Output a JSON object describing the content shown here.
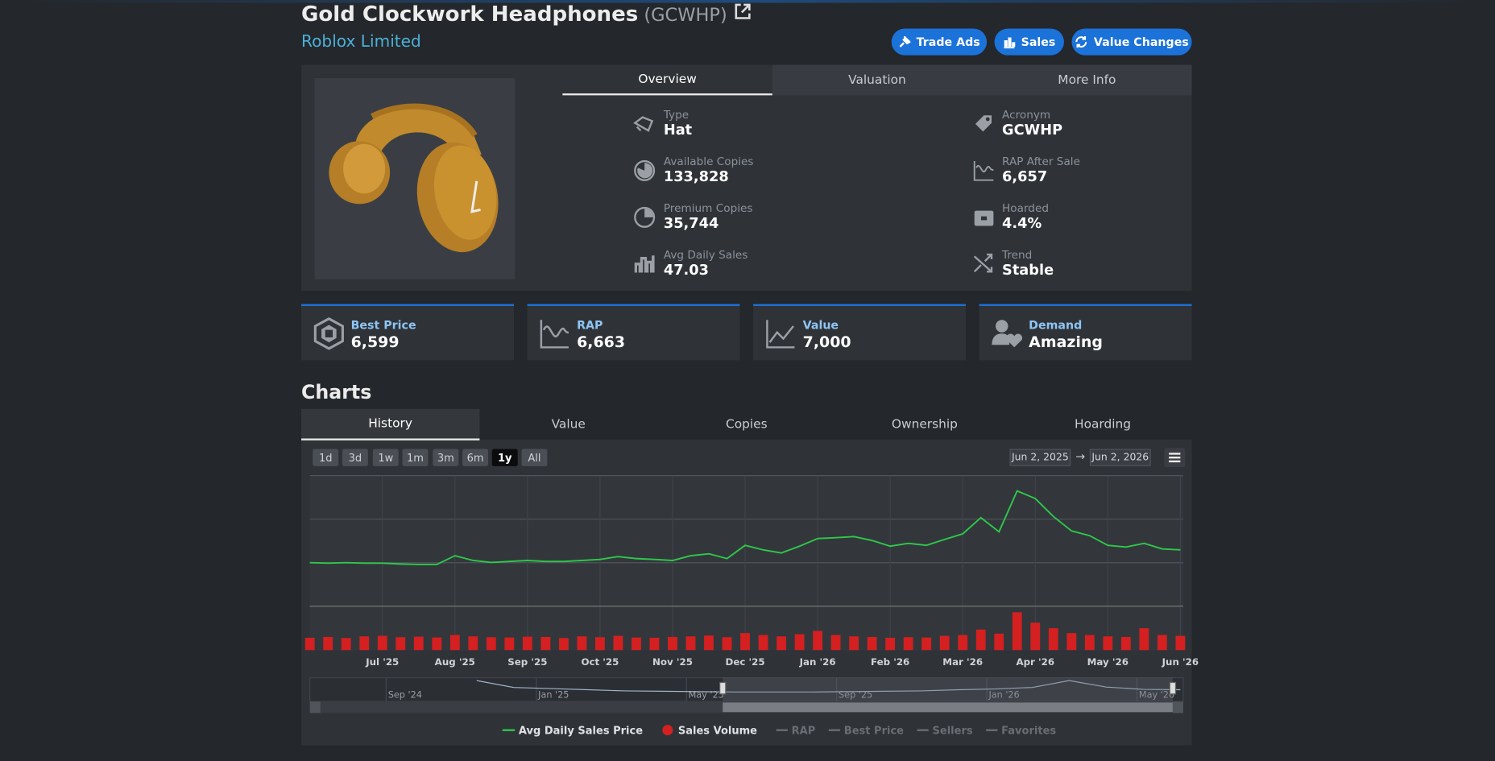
{
  "header": {
    "title": "Gold Clockwork Headphones",
    "acronym": "(GCWHP)",
    "subtitle": "Roblox Limited",
    "buttons": [
      "Trade Ads",
      "Sales",
      "Value Changes"
    ]
  },
  "tabs": [
    "Overview",
    "Valuation",
    "More Info"
  ],
  "active_tab": 0,
  "stats_left": [
    {
      "label": "Type",
      "value": "Hat"
    },
    {
      "label": "Available Copies",
      "value": "133,828"
    },
    {
      "label": "Premium Copies",
      "value": "35,744"
    },
    {
      "label": "Avg Daily Sales",
      "value": "47.03"
    }
  ],
  "stats_right": [
    {
      "label": "Acronym",
      "value": "GCWHP"
    },
    {
      "label": "RAP After Sale",
      "value": "6,657"
    },
    {
      "label": "Hoarded",
      "value": "4.4%"
    },
    {
      "label": "Trend",
      "value": "Stable"
    }
  ],
  "cards": [
    {
      "label": "Best Price",
      "value": "6,599"
    },
    {
      "label": "RAP",
      "value": "6,663"
    },
    {
      "label": "Value",
      "value": "7,000"
    },
    {
      "label": "Demand",
      "value": "Amazing"
    }
  ],
  "charts": {
    "title": "Charts",
    "tabs": [
      "History",
      "Value",
      "Copies",
      "Ownership",
      "Hoarding"
    ],
    "active_tab": 0,
    "ranges": [
      "1d",
      "3d",
      "1w",
      "1m",
      "3m",
      "6m",
      "1y",
      "All"
    ],
    "active_range": 6,
    "date_from": "Jun 2, 2025",
    "arrow": "→",
    "date_to": "Jun 2, 2026"
  },
  "chart_data": {
    "type": "combo",
    "categories": [
      null,
      null,
      null,
      null,
      "Jul '25",
      null,
      null,
      null,
      "Aug '25",
      null,
      null,
      null,
      "Sep '25",
      null,
      null,
      null,
      "Oct '25",
      null,
      null,
      null,
      "Nov '25",
      null,
      null,
      null,
      "Dec '25",
      null,
      null,
      null,
      "Jan '26",
      null,
      null,
      null,
      "Feb '26",
      null,
      null,
      null,
      "Mar '26",
      null,
      null,
      null,
      "Apr '26",
      null,
      null,
      null,
      "May '26",
      null,
      null,
      null,
      "Jun '26"
    ],
    "series": [
      {
        "name": "Avg Daily Sales Price",
        "type": "line",
        "color": "#2fc84a",
        "values": [
          6000,
          5980,
          6000,
          5980,
          5980,
          5940,
          5920,
          5920,
          6320,
          6100,
          6010,
          6060,
          6100,
          6060,
          6060,
          6100,
          6150,
          6280,
          6190,
          6150,
          6100,
          6320,
          6410,
          6190,
          6800,
          6590,
          6450,
          6760,
          7110,
          7150,
          7200,
          7020,
          6760,
          6890,
          6800,
          7070,
          7330,
          8070,
          7420,
          9300,
          8950,
          8120,
          7460,
          7240,
          6800,
          6720,
          6890,
          6630,
          6590
        ]
      },
      {
        "name": "Sales Volume",
        "type": "bar",
        "color": "#d42020",
        "axis": "y2",
        "values": [
          45,
          48,
          44,
          50,
          52,
          47,
          49,
          46,
          55,
          50,
          47,
          46,
          49,
          48,
          44,
          50,
          47,
          52,
          46,
          45,
          48,
          50,
          53,
          47,
          62,
          55,
          50,
          58,
          70,
          55,
          50,
          48,
          45,
          47,
          46,
          52,
          55,
          75,
          60,
          138,
          100,
          80,
          62,
          55,
          50,
          48,
          80,
          55,
          52
        ]
      }
    ],
    "ylim": [
      4000,
      10000
    ],
    "y2lim": [
      0,
      160
    ],
    "grid": true,
    "legend_hidden": [
      "RAP",
      "Best Price",
      "Sellers",
      "Favorites"
    ],
    "navigator": {
      "labels": [
        "Sep '24",
        "Jan '25",
        "May '25",
        "Sep '25",
        "Jan '26",
        "May '26"
      ],
      "values": [
        9000,
        7200,
        6900,
        6600,
        6300,
        6200,
        6100,
        6000,
        6000,
        6000,
        6100,
        6200,
        6300,
        6600,
        6800,
        7200,
        9000,
        7300,
        6700,
        6600
      ]
    }
  }
}
